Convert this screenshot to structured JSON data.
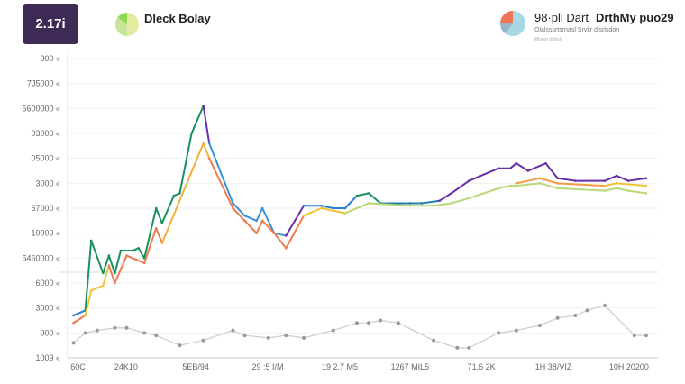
{
  "header": {
    "kpi_value": "2.17i",
    "left_title": "Dleck Bolay",
    "right_title_a": "98·pll Dart",
    "right_title_b": "DrthMy puo29",
    "right_subtitle": "Olalsssrtsrnasl Srvkr dlsrlsdon",
    "right_note": "Mhssn dsfssn",
    "left_pie_colors": [
      "#e3eba0",
      "#c8e39a",
      "#8fd94f"
    ],
    "right_pie_colors": [
      "#a8d8e6",
      "#93b5c6",
      "#f07355"
    ]
  },
  "chart_data": {
    "type": "line",
    "xlim": [
      0,
      100
    ],
    "ylim": [
      0,
      12
    ],
    "grid": true,
    "y_tick_labels": [
      "1009",
      "000",
      "3000",
      "6000",
      "5460000",
      "10009",
      "57000",
      "3000",
      "05000",
      "03000",
      "5600000",
      "7J5000",
      "000"
    ],
    "y_tick_suffix": "«",
    "x_ticks": [
      {
        "x": 0.5,
        "label": "60C"
      },
      {
        "x": 9.9,
        "label": "24K10"
      },
      {
        "x": 21.7,
        "label": "5EB/94"
      },
      {
        "x": 33.9,
        "label": "29 :5 I/M"
      },
      {
        "x": 46.1,
        "label": "19 2.7 M5"
      },
      {
        "x": 58,
        "label": "1267 MIL5"
      },
      {
        "x": 70.1,
        "label": "71.6 2K"
      },
      {
        "x": 82.3,
        "label": "1H 38/VIZ"
      },
      {
        "x": 95.1,
        "label": "10H 20200"
      }
    ],
    "series": [
      {
        "x": [
          1,
          3,
          4,
          6,
          7,
          8,
          9,
          11,
          12,
          13,
          15,
          16,
          18,
          19,
          21,
          23,
          24,
          28,
          30,
          32,
          33,
          35,
          37,
          40,
          43,
          45,
          47,
          49,
          51,
          53,
          58,
          60,
          63,
          65,
          68,
          73,
          75,
          76,
          78,
          81,
          83,
          86,
          91,
          93,
          95,
          98
        ],
        "y": [
          1.7,
          1.9,
          4.7,
          3.4,
          4.1,
          3.4,
          4.3,
          4.3,
          4.4,
          4.0,
          6.0,
          5.4,
          6.5,
          6.6,
          9.0,
          10.1,
          8.6,
          6.2,
          5.7,
          5.5,
          6.0,
          5.0,
          4.9,
          6.1,
          6.1,
          6.0,
          6.0,
          6.5,
          6.6,
          6.2,
          6.2,
          6.2,
          6.3,
          6.6,
          7.1,
          7.6,
          7.6,
          7.8,
          7.5,
          7.8,
          7.2,
          7.1,
          7.1,
          7.3,
          7.1,
          7.2
        ],
        "color_stops": [
          {
            "from": 0,
            "color": "#2a7fd4"
          },
          {
            "from": 3,
            "color": "#17925e"
          },
          {
            "from": 23,
            "color": "#6a2ea8"
          },
          {
            "from": 24,
            "color": "#3a8fd8"
          },
          {
            "from": 37,
            "color": "#6a2ea8"
          },
          {
            "from": 40,
            "color": "#2a7fd4"
          },
          {
            "from": 49,
            "color": "#17925e"
          },
          {
            "from": 53,
            "color": "#1f7fa8"
          },
          {
            "from": 63,
            "color": "#6a2ea8"
          }
        ]
      },
      {
        "x": [
          1,
          3,
          4,
          6,
          7,
          8,
          10,
          13,
          15,
          16,
          23,
          24,
          28,
          30,
          32,
          33,
          35,
          37,
          40,
          43,
          45,
          47,
          49,
          51,
          58,
          62,
          65,
          68,
          73,
          75,
          76,
          80,
          83,
          91,
          93,
          95,
          98
        ],
        "y": [
          1.4,
          1.7,
          2.7,
          2.9,
          3.7,
          3.0,
          4.1,
          3.8,
          5.2,
          4.6,
          8.6,
          8.0,
          6.0,
          5.5,
          5.0,
          5.5,
          5.0,
          4.4,
          5.7,
          6.0,
          5.9,
          5.8,
          6.0,
          6.2,
          6.1,
          6.1,
          6.2,
          6.4,
          6.8,
          6.9,
          6.9,
          7.0,
          6.8,
          6.7,
          6.8,
          6.7,
          6.6
        ],
        "color_stops": [
          {
            "from": 0,
            "color": "#ef7b4d"
          },
          {
            "from": 3,
            "color": "#f0c23a"
          },
          {
            "from": 7,
            "color": "#ef7b4d"
          },
          {
            "from": 16,
            "color": "#f0b23a"
          },
          {
            "from": 24,
            "color": "#ef7b4d"
          },
          {
            "from": 40,
            "color": "#f0c23a"
          },
          {
            "from": 47,
            "color": "#b9d877"
          }
        ]
      },
      {
        "x": [
          76,
          80,
          83,
          91,
          93,
          98
        ],
        "y": [
          7.0,
          7.2,
          7.0,
          6.9,
          7.0,
          6.9
        ],
        "color_stops": [
          {
            "from": 0,
            "color": "#f59a45"
          },
          {
            "from": 85,
            "color": "#f0c23a"
          }
        ]
      },
      {
        "x": [
          1,
          3,
          5,
          8,
          10,
          13,
          15,
          19,
          23,
          28,
          30,
          34,
          37,
          40,
          45,
          49,
          51,
          53,
          56,
          62,
          66,
          68,
          73,
          76,
          80,
          83,
          86,
          88,
          91,
          96,
          98
        ],
        "y": [
          0.6,
          1.0,
          1.1,
          1.2,
          1.2,
          1.0,
          0.9,
          0.5,
          0.7,
          1.1,
          0.9,
          0.8,
          0.9,
          0.8,
          1.1,
          1.4,
          1.4,
          1.5,
          1.4,
          0.7,
          0.4,
          0.4,
          1.0,
          1.1,
          1.3,
          1.6,
          1.7,
          1.9,
          2.1,
          0.9,
          0.9
        ],
        "color_stops": [
          {
            "from": 0,
            "color": "#cfcfcf"
          }
        ]
      }
    ]
  }
}
